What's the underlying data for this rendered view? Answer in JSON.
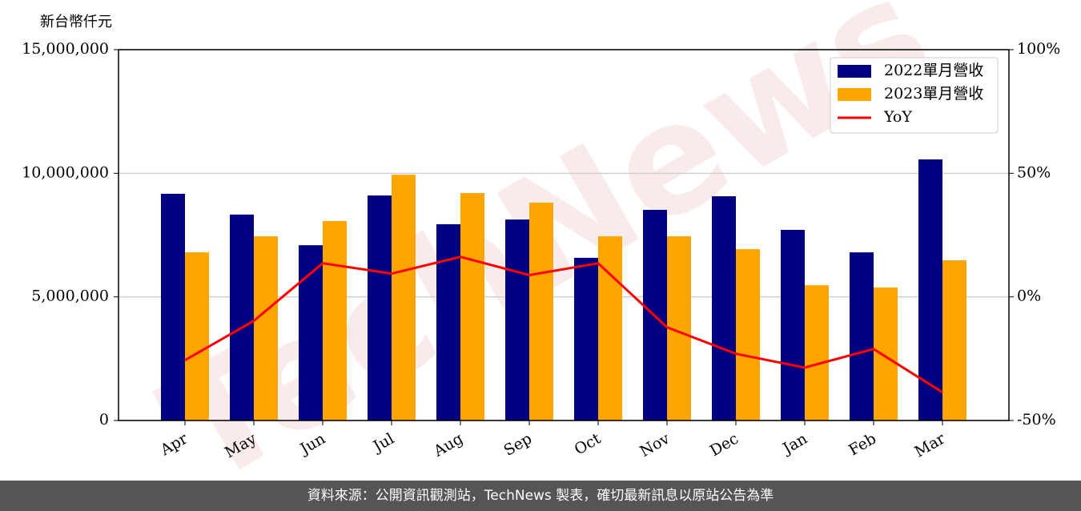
{
  "chart_data": {
    "type": "bar_line",
    "y_label": "新台幣仟元",
    "watermark": "TechNews",
    "footer": "資料來源：公開資訊觀測站，TechNews 製表，確切最新訊息以原站公告為準",
    "categories": [
      "Apr",
      "May",
      "Jun",
      "Jul",
      "Aug",
      "Sep",
      "Oct",
      "Nov",
      "Dec",
      "Jan",
      "Feb",
      "Mar"
    ],
    "series": [
      {
        "name": "2022單月營收",
        "color": "#000080",
        "kind": "bar",
        "values": [
          9170000,
          8330000,
          7090000,
          9100000,
          7940000,
          8130000,
          6580000,
          8520000,
          9070000,
          7710000,
          6800000,
          10560000
        ]
      },
      {
        "name": "2023單月營收",
        "color": "#ffa500",
        "kind": "bar",
        "values": [
          6800000,
          7450000,
          8070000,
          9940000,
          9200000,
          8810000,
          7450000,
          7450000,
          6930000,
          5470000,
          5380000,
          6480000
        ]
      },
      {
        "name": "YoY",
        "color": "#ff0000",
        "kind": "line",
        "axis": "y2",
        "values": [
          -25.6,
          -9.7,
          13.6,
          9.4,
          16.2,
          8.8,
          13.6,
          -12.3,
          -23.0,
          -28.6,
          -21.1,
          -38.6
        ]
      }
    ],
    "ylim": [
      0,
      15000000
    ],
    "yticks": [
      0,
      {
        "value": 5000000,
        "label": "5,000,000"
      },
      {
        "value": 10000000,
        "label": "10,000,000"
      },
      {
        "value": 15000000,
        "label": "15,000,000"
      }
    ],
    "y2lim": [
      -50,
      100
    ],
    "y2ticks": [
      {
        "value": -50,
        "label": "-50%"
      },
      {
        "value": 0,
        "label": "0%"
      },
      {
        "value": 50,
        "label": "50%"
      },
      {
        "value": 100,
        "label": "100%"
      }
    ],
    "grid": true,
    "legend": "upper right"
  }
}
